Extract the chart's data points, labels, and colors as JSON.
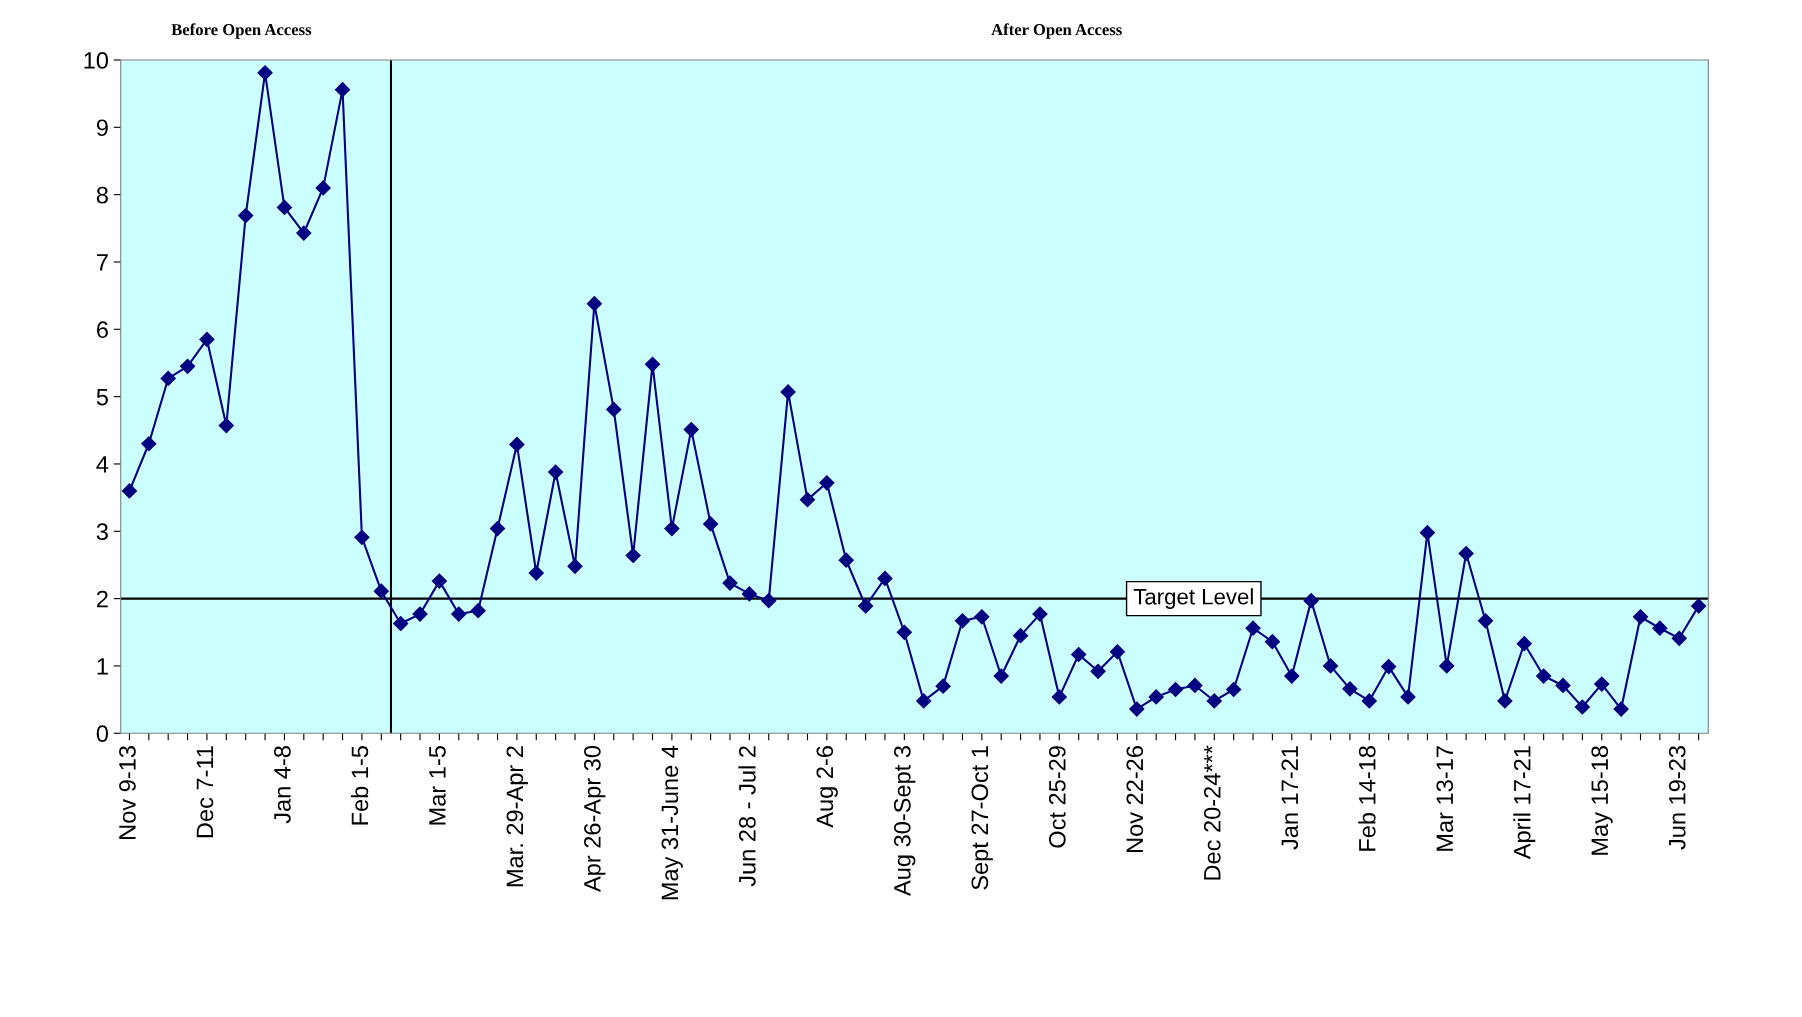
{
  "chart_data": {
    "type": "line",
    "color": "#000080",
    "marker": "diamond",
    "line_style": "solid",
    "grid": false,
    "legend": false,
    "categories": [
      "Nov 9-13",
      null,
      null,
      null,
      "Dec 7-11",
      null,
      null,
      null,
      "Jan 4-8",
      null,
      null,
      null,
      "Feb 1-5",
      null,
      null,
      null,
      "Mar 1-5",
      null,
      null,
      null,
      "Mar. 29-Apr 2",
      null,
      null,
      null,
      "Apr 26-Apr 30",
      null,
      null,
      null,
      "May 31-June 4",
      null,
      null,
      null,
      "Jun 28 - Jul 2",
      null,
      null,
      null,
      "Aug 2-6",
      null,
      null,
      null,
      "Aug 30-Sept 3",
      null,
      null,
      null,
      "Sept 27-Oct 1",
      null,
      null,
      null,
      "Oct 25-29",
      null,
      null,
      null,
      "Nov 22-26",
      null,
      null,
      null,
      "Dec 20-24***",
      null,
      null,
      null,
      "Jan 17-21",
      null,
      null,
      null,
      "Feb 14-18",
      null,
      null,
      null,
      "Mar 13-17",
      null,
      null,
      null,
      "April 17-21",
      null,
      null,
      null,
      "May 15-18",
      null,
      null,
      null,
      "Jun 19-23",
      null
    ],
    "values": [
      3.6,
      4.3,
      5.27,
      5.45,
      5.85,
      4.57,
      7.69,
      9.81,
      7.81,
      7.43,
      8.1,
      9.56,
      2.91,
      2.11,
      1.63,
      1.77,
      2.26,
      1.77,
      1.82,
      3.04,
      4.29,
      2.38,
      3.88,
      2.48,
      6.38,
      4.81,
      2.64,
      5.48,
      3.04,
      4.51,
      3.11,
      2.23,
      2.07,
      1.97,
      5.07,
      3.47,
      3.72,
      2.57,
      1.89,
      2.3,
      1.5,
      0.48,
      0.7,
      1.67,
      1.73,
      0.85,
      1.45,
      1.77,
      0.54,
      1.17,
      0.92,
      1.21,
      0.36,
      0.54,
      0.65,
      0.71,
      0.48,
      0.65,
      1.56,
      1.36,
      0.85,
      1.97,
      1.0,
      0.66,
      0.48,
      0.99,
      0.54,
      2.98,
      1.0,
      2.67,
      1.67,
      0.48,
      1.33,
      0.85,
      0.71,
      0.39,
      0.73,
      0.36,
      1.73,
      1.56,
      1.41,
      1.89
    ],
    "ylim": [
      0,
      10
    ],
    "yticks": [
      0,
      1,
      2,
      3,
      4,
      5,
      6,
      7,
      8,
      9,
      10
    ],
    "ref_lines": [
      {
        "axis": "y",
        "value": 2,
        "label": "Target Level",
        "color": "#000000"
      }
    ],
    "annotations": [
      "Before Open Access",
      "After Open Access"
    ]
  }
}
